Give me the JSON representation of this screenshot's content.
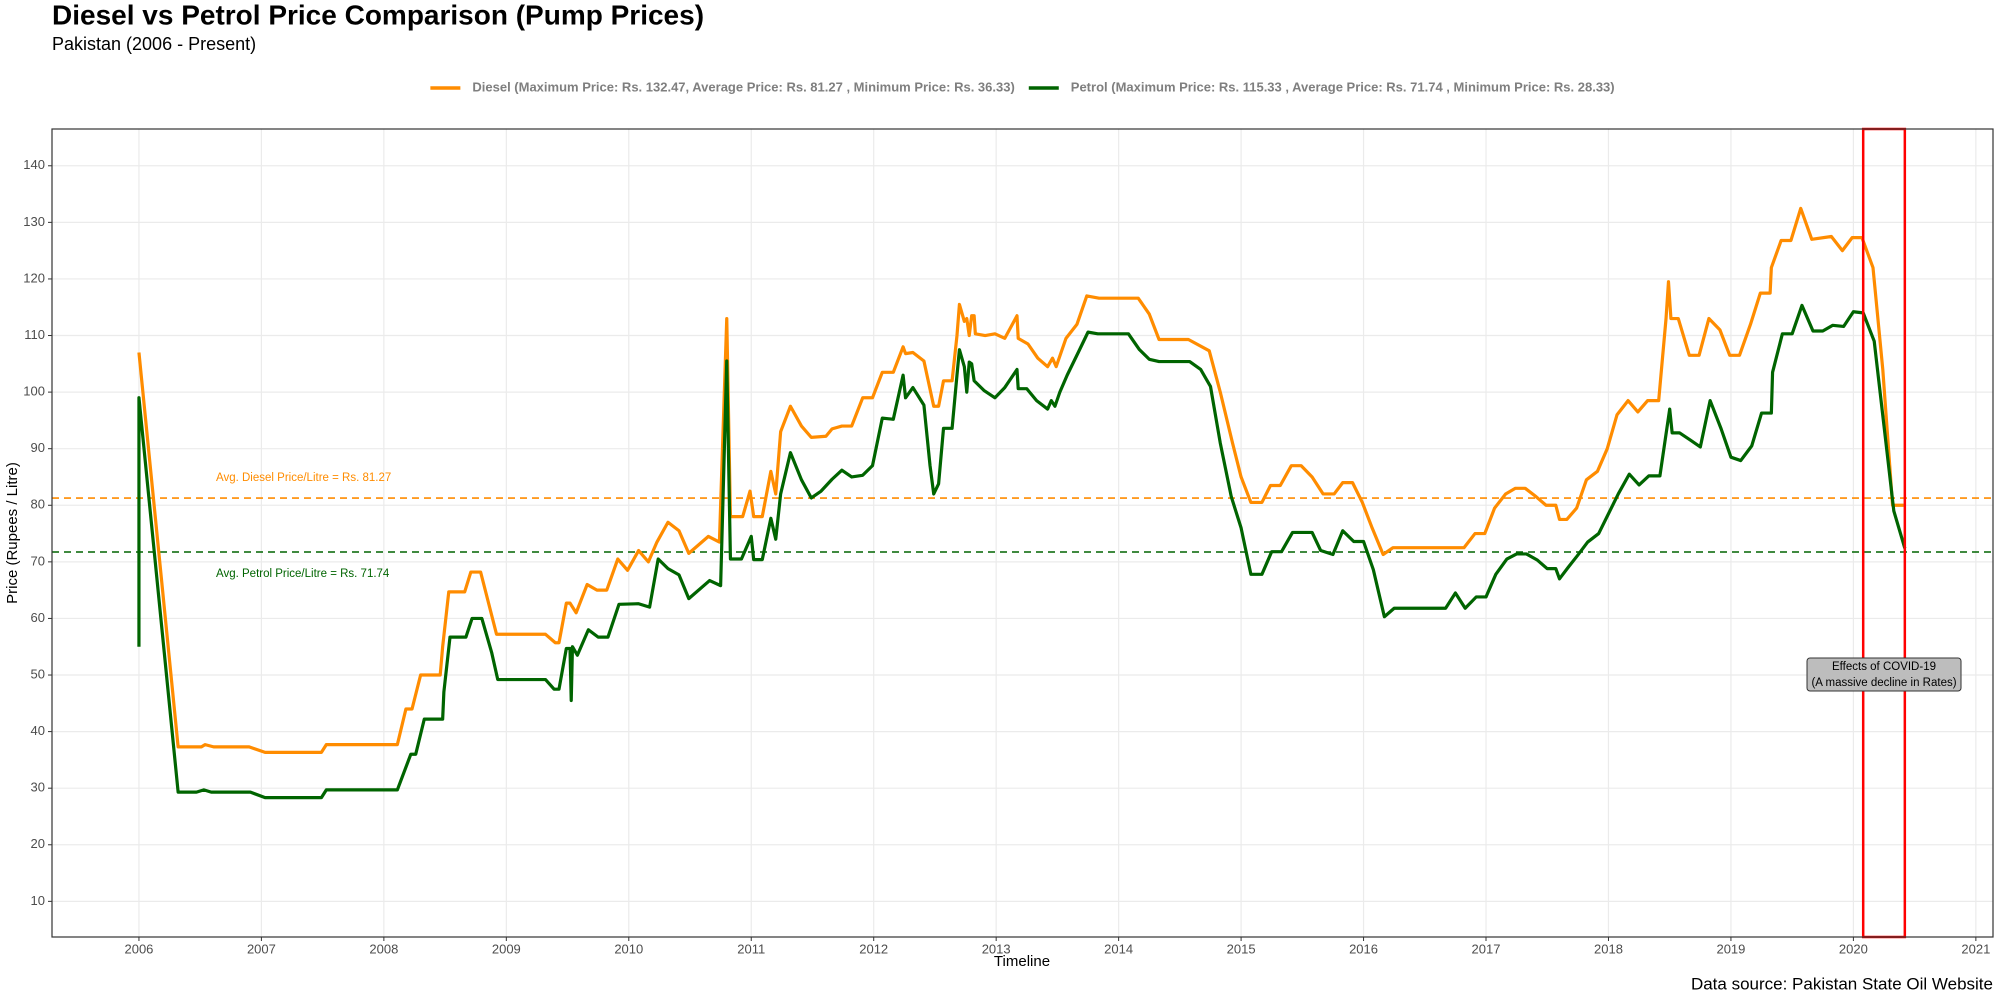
{
  "chart_data": {
    "type": "line",
    "title": "Diesel vs Petrol Price Comparison (Pump Prices)",
    "subtitle": "Pakistan (2006 - Present)",
    "xlabel": "Timeline",
    "ylabel": "Price (Rupees / Litre)",
    "caption": "Data source: Pakistan State Oil Website",
    "xlim": [
      2005.29,
      2021.14
    ],
    "ylim": [
      3.7,
      146.5
    ],
    "xticks": [
      2006,
      2007,
      2008,
      2009,
      2010,
      2011,
      2012,
      2013,
      2014,
      2015,
      2016,
      2017,
      2018,
      2019,
      2020,
      2021
    ],
    "yticks": [
      10,
      20,
      30,
      40,
      50,
      60,
      70,
      80,
      90,
      100,
      110,
      120,
      130,
      140
    ],
    "grid": true,
    "legend": "top",
    "series": [
      {
        "name": "Diesel (Maximum Price: Rs. 132.47, Average Price: Rs. 81.27 , Minimum Price: Rs. 36.33)",
        "color": "#ff8c00",
        "x": [
          2006.0,
          2006.32,
          2006.51,
          2006.54,
          2006.61,
          2006.9,
          2007.03,
          2007.49,
          2007.53,
          2008.11,
          2008.18,
          2008.23,
          2008.3,
          2008.46,
          2008.48,
          2008.53,
          2008.66,
          2008.71,
          2008.79,
          2008.92,
          2009.32,
          2009.4,
          2009.43,
          2009.49,
          2009.52,
          2009.57,
          2009.66,
          2009.74,
          2009.82,
          2009.91,
          2009.99,
          2010.08,
          2010.16,
          2010.23,
          2010.32,
          2010.41,
          2010.49,
          2010.65,
          2010.74,
          2010.8,
          2010.83,
          2010.93,
          2010.99,
          2011.02,
          2011.09,
          2011.16,
          2011.2,
          2011.24,
          2011.32,
          2011.41,
          2011.49,
          2011.61,
          2011.66,
          2011.74,
          2011.82,
          2011.91,
          2011.99,
          2012.07,
          2012.16,
          2012.24,
          2012.26,
          2012.32,
          2012.41,
          2012.49,
          2012.53,
          2012.57,
          2012.64,
          2012.68,
          2012.7,
          2012.74,
          2012.76,
          2012.78,
          2012.8,
          2012.82,
          2012.83,
          2012.91,
          2012.99,
          2013.07,
          2013.17,
          2013.18,
          2013.26,
          2013.34,
          2013.42,
          2013.46,
          2013.49,
          2013.57,
          2013.66,
          2013.74,
          2013.84,
          2014.16,
          2014.25,
          2014.33,
          2014.57,
          2014.74,
          2014.83,
          2014.93,
          2015.0,
          2015.08,
          2015.17,
          2015.24,
          2015.32,
          2015.41,
          2015.49,
          2015.58,
          2015.67,
          2015.76,
          2015.83,
          2015.91,
          2015.99,
          2016.07,
          2016.16,
          2016.24,
          2016.82,
          2016.91,
          2016.99,
          2017.07,
          2017.16,
          2017.24,
          2017.32,
          2017.41,
          2017.49,
          2017.57,
          2017.6,
          2017.66,
          2017.74,
          2017.82,
          2017.91,
          2017.99,
          2018.07,
          2018.16,
          2018.24,
          2018.32,
          2018.41,
          2018.47,
          2018.49,
          2018.51,
          2018.57,
          2018.66,
          2018.74,
          2018.82,
          2018.91,
          2018.99,
          2019.07,
          2019.16,
          2019.24,
          2019.32,
          2019.33,
          2019.41,
          2019.49,
          2019.57,
          2019.66,
          2019.82,
          2019.91,
          2019.99,
          2020.07,
          2020.16,
          2020.24,
          2020.32,
          2020.41
        ],
        "values": [
          107,
          37.3,
          37.3,
          37.7,
          37.3,
          37.3,
          36.33,
          36.33,
          37.7,
          37.7,
          44,
          44,
          50,
          50,
          55,
          64.7,
          64.7,
          68.2,
          68.2,
          57.2,
          57.2,
          55.7,
          55.7,
          62.7,
          62.7,
          61,
          66,
          65,
          65,
          70.5,
          68.5,
          72,
          70,
          73.5,
          77,
          75.5,
          71.5,
          74.5,
          73.5,
          113,
          78,
          78,
          82.5,
          78,
          78,
          86,
          82,
          93,
          97.5,
          94,
          92,
          92.2,
          93.5,
          94,
          94,
          99,
          99,
          103.5,
          103.5,
          108,
          106.8,
          107,
          105.5,
          97.5,
          97.5,
          102,
          102,
          110,
          115.5,
          112.5,
          113,
          110,
          113.5,
          113.5,
          110.3,
          110,
          110.3,
          109.5,
          113.5,
          109.5,
          108.5,
          106,
          104.5,
          106,
          104.5,
          109.5,
          112,
          117,
          116.6,
          116.6,
          113.8,
          109.3,
          109.3,
          107.3,
          100,
          91,
          85,
          80.5,
          80.5,
          83.5,
          83.5,
          87,
          87,
          85,
          82,
          82,
          84,
          84,
          80.5,
          76,
          71.3,
          72.5,
          72.5,
          75,
          75,
          79.5,
          82,
          83,
          83,
          81.5,
          80,
          80,
          77.5,
          77.5,
          79.5,
          84.5,
          86,
          90,
          96,
          98.5,
          96.5,
          98.5,
          98.5,
          113,
          119.5,
          113,
          113,
          106.5,
          106.5,
          113,
          111,
          106.5,
          106.5,
          112,
          117.5,
          117.5,
          122,
          126.8,
          126.8,
          132.47,
          127,
          127.5,
          125,
          127.3,
          127.3,
          122,
          104,
          80,
          80
        ]
      },
      {
        "name": "Petrol (Maximum Price: Rs. 115.33 , Average Price: Rs. 71.74 , Minimum Price: Rs. 28.33)",
        "color": "#006400",
        "x": [
          2006.0,
          2006.0,
          2006.32,
          2006.47,
          2006.53,
          2006.59,
          2006.91,
          2007.03,
          2007.49,
          2007.53,
          2008.11,
          2008.22,
          2008.26,
          2008.33,
          2008.48,
          2008.49,
          2008.54,
          2008.67,
          2008.72,
          2008.8,
          2008.88,
          2008.93,
          2009.32,
          2009.39,
          2009.43,
          2009.49,
          2009.52,
          2009.53,
          2009.54,
          2009.58,
          2009.67,
          2009.75,
          2009.83,
          2009.92,
          2010.08,
          2010.17,
          2010.24,
          2010.32,
          2010.41,
          2010.49,
          2010.66,
          2010.75,
          2010.8,
          2010.83,
          2010.92,
          2011.0,
          2011.02,
          2011.09,
          2011.16,
          2011.2,
          2011.24,
          2011.32,
          2011.41,
          2011.49,
          2011.57,
          2011.66,
          2011.74,
          2011.82,
          2011.91,
          2011.99,
          2012.07,
          2012.16,
          2012.24,
          2012.26,
          2012.32,
          2012.41,
          2012.46,
          2012.49,
          2012.53,
          2012.57,
          2012.64,
          2012.68,
          2012.7,
          2012.74,
          2012.76,
          2012.78,
          2012.8,
          2012.82,
          2012.9,
          2012.99,
          2013.07,
          2013.17,
          2013.18,
          2013.25,
          2013.33,
          2013.42,
          2013.45,
          2013.48,
          2013.52,
          2013.58,
          2013.67,
          2013.75,
          2013.83,
          2014.08,
          2014.17,
          2014.25,
          2014.33,
          2014.58,
          2014.67,
          2014.75,
          2014.83,
          2014.92,
          2015.0,
          2015.08,
          2015.17,
          2015.25,
          2015.33,
          2015.42,
          2015.58,
          2015.65,
          2015.75,
          2015.83,
          2015.92,
          2016.0,
          2016.08,
          2016.17,
          2016.25,
          2016.67,
          2016.75,
          2016.83,
          2016.92,
          2017.0,
          2017.08,
          2017.17,
          2017.25,
          2017.33,
          2017.42,
          2017.5,
          2017.57,
          2017.6,
          2017.67,
          2017.75,
          2017.83,
          2017.92,
          2018.0,
          2018.08,
          2018.17,
          2018.25,
          2018.33,
          2018.42,
          2018.5,
          2018.52,
          2018.58,
          2018.67,
          2018.75,
          2018.83,
          2018.92,
          2019.0,
          2019.08,
          2019.17,
          2019.25,
          2019.33,
          2019.34,
          2019.42,
          2019.5,
          2019.58,
          2019.67,
          2019.75,
          2019.83,
          2019.92,
          2020.0,
          2020.08,
          2020.17,
          2020.25,
          2020.33,
          2020.42
        ],
        "values": [
          55,
          99,
          29.3,
          29.3,
          29.7,
          29.3,
          29.3,
          28.33,
          28.33,
          29.7,
          29.7,
          36,
          36,
          42.2,
          42.2,
          47,
          56.7,
          56.7,
          60,
          60,
          54,
          49.2,
          49.2,
          47.5,
          47.5,
          54.7,
          54.7,
          45.5,
          55,
          53.5,
          58,
          56.7,
          56.7,
          62.5,
          62.6,
          62,
          70.5,
          68.8,
          67.7,
          63.5,
          66.7,
          65.8,
          105.5,
          70.5,
          70.5,
          74.5,
          70.4,
          70.4,
          77.7,
          74,
          82,
          89.3,
          84.5,
          81.3,
          82.5,
          84.6,
          86.2,
          85,
          85.3,
          87,
          95.4,
          95.2,
          103,
          99,
          100.8,
          97.7,
          87,
          82,
          83.8,
          93.6,
          93.6,
          103,
          107.5,
          104.5,
          100,
          105.3,
          105,
          102,
          100.3,
          99,
          100.8,
          104,
          100.6,
          100.6,
          98.5,
          97,
          98.5,
          97.5,
          100,
          103,
          107,
          110.6,
          110.3,
          110.3,
          107.5,
          105.8,
          105.4,
          105.4,
          104,
          101,
          91,
          81.5,
          76,
          67.8,
          67.8,
          71.8,
          71.8,
          75.2,
          75.2,
          72,
          71.3,
          75.5,
          73.6,
          73.6,
          68.6,
          60.3,
          61.8,
          61.8,
          64.5,
          61.8,
          63.8,
          63.8,
          67.8,
          70.5,
          71.4,
          71.4,
          70.3,
          68.8,
          68.8,
          67,
          69,
          71.2,
          73.5,
          75,
          78.5,
          82,
          85.5,
          83.6,
          85.2,
          85.2,
          97,
          92.8,
          92.8,
          91.5,
          90.3,
          98.5,
          93.5,
          88.5,
          87.9,
          90.5,
          96.3,
          96.3,
          103.5,
          110.3,
          110.3,
          115.33,
          110.8,
          110.8,
          111.8,
          111.6,
          114.2,
          114,
          109,
          94,
          79,
          72.4
        ]
      }
    ],
    "hlines": [
      {
        "value": 81.27,
        "label": "Avg. Diesel Price/Litre = Rs. 81.27",
        "color": "#ff8c00"
      },
      {
        "value": 71.74,
        "label": "Avg. Petrol Price/Litre = Rs. 71.74",
        "color": "#006400"
      }
    ],
    "highlight": {
      "xmin": 2020.08,
      "xmax": 2020.42,
      "color": "#ff0000",
      "note": [
        "Effects of COVID-19",
        "(A massive decline in Rates)"
      ]
    }
  }
}
